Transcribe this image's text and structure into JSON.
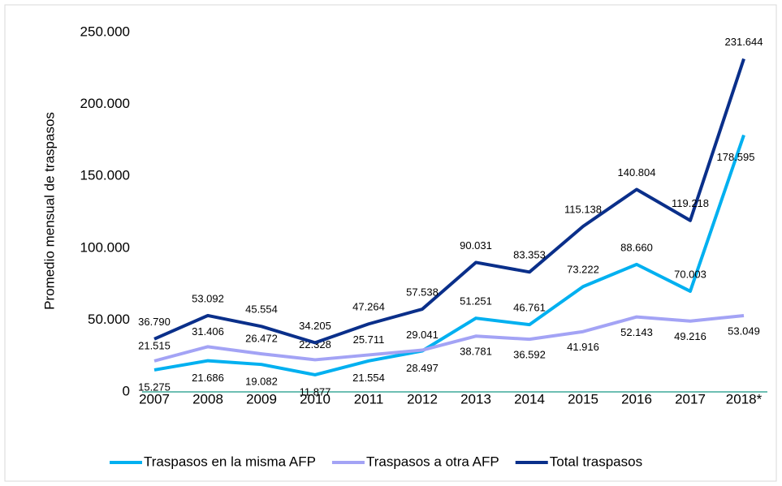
{
  "chart_data": {
    "type": "line",
    "y_label": "Promedio mensual de traspasos",
    "categories": [
      "2007",
      "2008",
      "2009",
      "2010",
      "2011",
      "2012",
      "2013",
      "2014",
      "2015",
      "2016",
      "2017",
      "2018*"
    ],
    "series": [
      {
        "name": "Traspasos en la misma AFP",
        "color": "#00b0f0",
        "values": [
          15275,
          21686,
          19082,
          11877,
          21554,
          28497,
          51251,
          46761,
          73222,
          88660,
          70003,
          178595
        ],
        "value_labels": [
          "15.275",
          "21.686",
          "19.082",
          "11.877",
          "21.554",
          "28.497",
          "51.251",
          "46.761",
          "73.222",
          "88.660",
          "70.003",
          "178.595"
        ]
      },
      {
        "name": "Traspasos a otra AFP",
        "color": "#a3a3f5",
        "values": [
          21515,
          31406,
          26472,
          22328,
          25711,
          29041,
          38781,
          36592,
          41916,
          52143,
          49216,
          53049
        ],
        "value_labels": [
          "21.515",
          "31.406",
          "26.472",
          "22.328",
          "25.711",
          "29.041",
          "38.781",
          "36.592",
          "41.916",
          "52.143",
          "49.216",
          "53.049"
        ]
      },
      {
        "name": "Total traspasos",
        "color": "#0a2f8a",
        "values": [
          36790,
          53092,
          45554,
          34205,
          47264,
          57538,
          90031,
          83353,
          115138,
          140804,
          119218,
          231644
        ],
        "value_labels": [
          "36.790",
          "53.092",
          "45.554",
          "34.205",
          "47.264",
          "57.538",
          "90.031",
          "83.353",
          "115.138",
          "140.804",
          "119.218",
          "231.644"
        ]
      }
    ],
    "ylim": [
      0,
      250000
    ],
    "yticks": [
      0,
      {
        "value": 50000,
        "label": "50.000"
      },
      {
        "value": 100000,
        "label": "100.000"
      },
      {
        "value": 150000,
        "label": "150.000"
      },
      {
        "value": 200000,
        "label": "200.000"
      },
      {
        "value": 250000,
        "label": "250.000"
      }
    ],
    "grid": false,
    "zero_line_color": "#3faa9a",
    "legend": "bottom"
  }
}
